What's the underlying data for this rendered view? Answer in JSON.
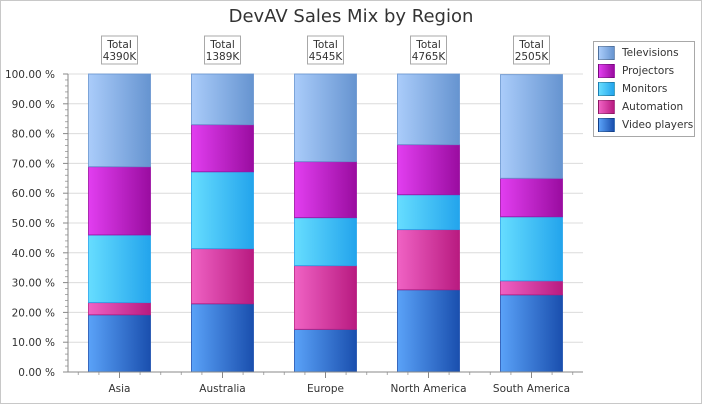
{
  "chart_data": {
    "type": "bar",
    "stacked": "percent",
    "title": "DevAV Sales Mix by Region",
    "xlabel": "",
    "ylabel": "",
    "ylim": [
      0,
      100
    ],
    "yticks": [
      "0.00 %",
      "10.00 %",
      "20.00 %",
      "30.00 %",
      "40.00 %",
      "50.00 %",
      "60.00 %",
      "70.00 %",
      "80.00 %",
      "90.00 %",
      "100.00 %"
    ],
    "grid": true,
    "legend_position": "top-right",
    "categories": [
      "Asia",
      "Australia",
      "Europe",
      "North America",
      "South America"
    ],
    "totals": [
      {
        "label": "Total",
        "value": "4390K"
      },
      {
        "label": "Total",
        "value": "1389K"
      },
      {
        "label": "Total",
        "value": "4545K"
      },
      {
        "label": "Total",
        "value": "4765K"
      },
      {
        "label": "Total",
        "value": "2505K"
      }
    ],
    "series": [
      {
        "name": "Video players",
        "color": "#2f6fd6",
        "light": "#5aa2f8",
        "dark": "#1a4fae",
        "values": [
          19.2,
          22.9,
          14.3,
          27.6,
          25.9
        ]
      },
      {
        "name": "Automation",
        "color": "#d63ba8",
        "light": "#f062c4",
        "dark": "#b81a80",
        "values": [
          4.1,
          18.5,
          21.4,
          20.2,
          4.7
        ]
      },
      {
        "name": "Monitors",
        "color": "#3ec0f0",
        "light": "#66ddff",
        "dark": "#23a4ec",
        "values": [
          22.7,
          25.8,
          16.1,
          11.7,
          21.5
        ]
      },
      {
        "name": "Projectors",
        "color": "#c026d8",
        "light": "#e23ef0",
        "dark": "#9a0ca0",
        "values": [
          22.9,
          15.8,
          18.8,
          16.8,
          12.9
        ]
      },
      {
        "name": "Televisions",
        "color": "#88b0e8",
        "light": "#aaccfa",
        "dark": "#6694d0",
        "values": [
          31.1,
          17.0,
          29.4,
          23.7,
          34.8
        ]
      }
    ],
    "legend_order": [
      "Televisions",
      "Projectors",
      "Monitors",
      "Automation",
      "Video players"
    ]
  }
}
